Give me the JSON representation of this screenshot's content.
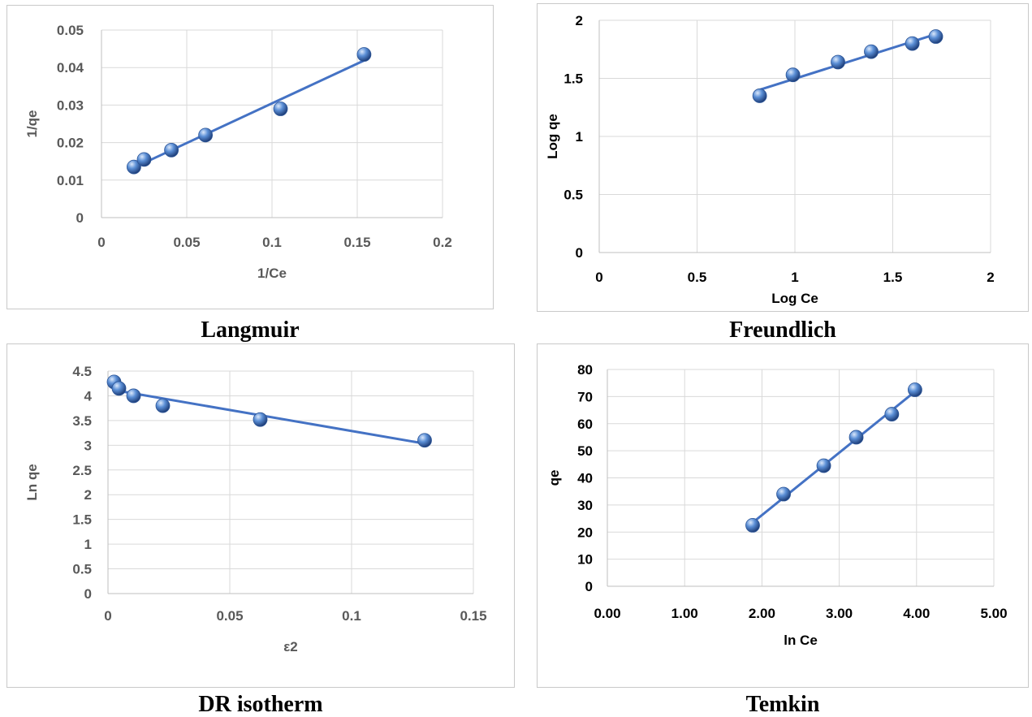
{
  "chart_data": [
    {
      "type": "scatter",
      "caption": "Langmuir",
      "xlabel": "1/Ce",
      "ylabel": "1/qe",
      "xlim": [
        0,
        0.2
      ],
      "ylim": [
        0,
        0.05
      ],
      "xticks": [
        "0",
        "0.05",
        "0.1",
        "0.15",
        "0.2"
      ],
      "yticks": [
        "0",
        "0.01",
        "0.02",
        "0.03",
        "0.04",
        "0.05"
      ],
      "grid": true,
      "trendline": "linear",
      "series": [
        {
          "x": [
            0.019,
            0.025,
            0.041,
            0.061,
            0.105,
            0.154
          ],
          "y": [
            0.0135,
            0.0155,
            0.018,
            0.022,
            0.029,
            0.0435
          ]
        }
      ],
      "label_colors": {
        "ticks": "#595959",
        "axis_labels": "#595959"
      }
    },
    {
      "type": "scatter",
      "caption": "Freundlich",
      "xlabel": "Log Ce",
      "ylabel": "Log qe",
      "xlim": [
        0,
        2
      ],
      "ylim": [
        0,
        2
      ],
      "xticks": [
        "0",
        "0.5",
        "1",
        "1.5",
        "2"
      ],
      "yticks": [
        "0",
        "0.5",
        "1",
        "1.5",
        "2"
      ],
      "grid": true,
      "trendline": "linear",
      "series": [
        {
          "x": [
            0.82,
            0.99,
            1.22,
            1.39,
            1.6,
            1.72
          ],
          "y": [
            1.35,
            1.53,
            1.64,
            1.73,
            1.8,
            1.86
          ]
        }
      ],
      "label_colors": {
        "ticks": "#000000",
        "axis_labels": "#000000"
      }
    },
    {
      "type": "scatter",
      "caption": "DR isotherm",
      "xlabel": "ε2",
      "ylabel": "Ln qe",
      "xlim": [
        0,
        0.15
      ],
      "ylim": [
        0,
        4.5
      ],
      "xticks": [
        "0",
        "0.05",
        "0.1",
        "0.15"
      ],
      "yticks": [
        "0",
        "0.5",
        "1",
        "1.5",
        "2",
        "2.5",
        "3",
        "3.5",
        "4",
        "4.5"
      ],
      "grid": true,
      "trendline": "linear",
      "series": [
        {
          "x": [
            0.0025,
            0.0045,
            0.0105,
            0.0225,
            0.0625,
            0.13
          ],
          "y": [
            4.28,
            4.15,
            4.0,
            3.8,
            3.52,
            3.1
          ]
        }
      ],
      "label_colors": {
        "ticks": "#595959",
        "axis_labels": "#595959"
      }
    },
    {
      "type": "scatter",
      "caption": "Temkin",
      "xlabel": "ln Ce",
      "ylabel": "qe",
      "xlim": [
        0,
        5
      ],
      "ylim": [
        0,
        80
      ],
      "xticks": [
        "0.00",
        "1.00",
        "2.00",
        "3.00",
        "4.00",
        "5.00"
      ],
      "yticks": [
        "0",
        "10",
        "20",
        "30",
        "40",
        "50",
        "60",
        "70",
        "80"
      ],
      "grid": true,
      "trendline": "linear",
      "series": [
        {
          "x": [
            1.88,
            2.28,
            2.8,
            3.22,
            3.68,
            3.98
          ],
          "y": [
            22.5,
            34,
            44.5,
            55,
            63.5,
            72.5
          ]
        }
      ],
      "label_colors": {
        "ticks": "#000000",
        "axis_labels": "#000000"
      }
    }
  ],
  "colors": {
    "series": "#4472c4",
    "grid": "#d9d9d9",
    "axis_line": "#bfbfbf",
    "frame": "#c9c9c9"
  }
}
